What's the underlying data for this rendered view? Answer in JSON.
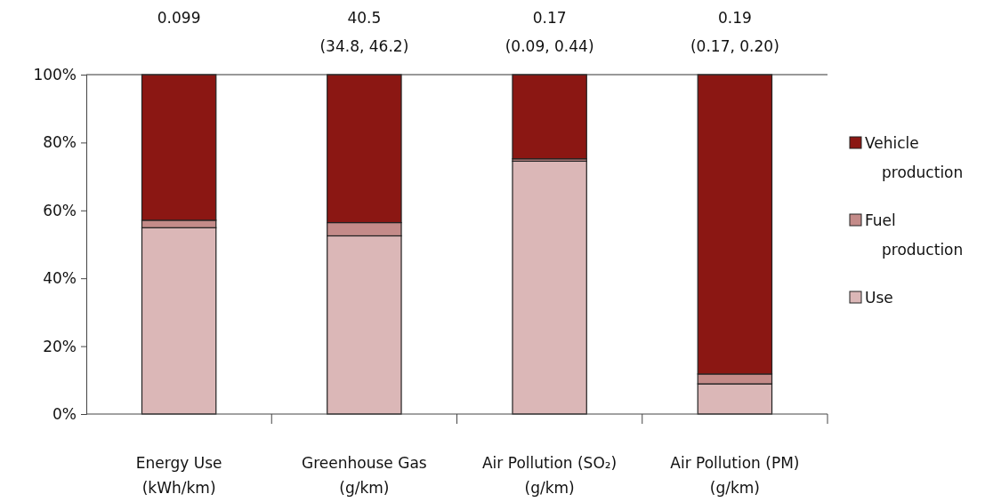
{
  "chart_data": {
    "type": "bar",
    "stacked": true,
    "categories": [
      "Energy Use\n(kWh/km)",
      "Greenhouse Gas\n(g/km)",
      "Air Pollution (SO₂)\n(g/km)",
      "Air Pollution (PM)\n(g/km)"
    ],
    "series": [
      {
        "name": "Use",
        "color": "#dbb7b7",
        "values": [
          54.9,
          52.5,
          74.5,
          8.9
        ]
      },
      {
        "name": "Fuel production",
        "color": "#c48b89",
        "values": [
          2.2,
          3.9,
          0.7,
          2.9
        ]
      },
      {
        "name": "Vehicle production",
        "color": "#8b1713",
        "values": [
          42.9,
          43.6,
          24.8,
          88.2
        ]
      }
    ],
    "ylim": [
      0,
      100
    ],
    "yticks": [
      {
        "value": 0,
        "label": "0%"
      },
      {
        "value": 20,
        "label": "20%"
      },
      {
        "value": 40,
        "label": "40%"
      },
      {
        "value": 60,
        "label": "60%"
      },
      {
        "value": 80,
        "label": "80%"
      },
      {
        "value": 100,
        "label": "100%"
      }
    ],
    "annotations": [
      "0.099",
      "40.5\n(34.8, 46.2)",
      "0.17\n(0.09, 0.44)",
      "0.19\n(0.17, 0.20)"
    ],
    "legend": "right",
    "grid": false
  }
}
